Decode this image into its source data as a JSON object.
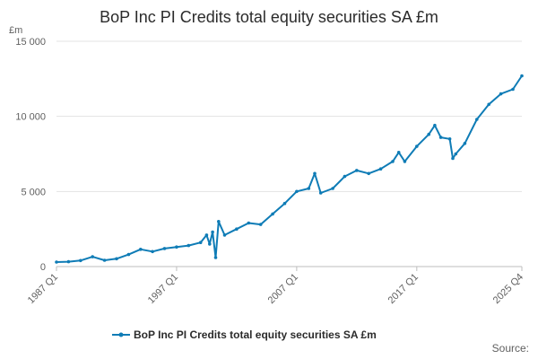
{
  "chart_data": {
    "type": "line",
    "title": "BoP Inc PI Credits total equity securities SA £m",
    "unit_label": "£m",
    "xlabel": "",
    "ylabel": "",
    "ylim": [
      0,
      15000
    ],
    "yticks": [
      0,
      5000,
      10000,
      15000
    ],
    "ytick_labels": [
      "0",
      "5 000",
      "10 000",
      "15 000"
    ],
    "x_range": [
      "1987 Q1",
      "2025 Q4"
    ],
    "xticks": [
      "1987 Q1",
      "1997 Q1",
      "2007 Q1",
      "2017 Q1",
      "2025 Q4"
    ],
    "grid": true,
    "legend_position": "bottom",
    "source_label": "Source:",
    "series": [
      {
        "name": "BoP Inc PI Credits total equity securities SA £m",
        "color": "#0f7cb6",
        "x": [
          "1987 Q1",
          "1988 Q1",
          "1989 Q1",
          "1990 Q1",
          "1991 Q1",
          "1992 Q1",
          "1993 Q1",
          "1994 Q1",
          "1995 Q1",
          "1996 Q1",
          "1997 Q1",
          "1998 Q1",
          "1999 Q1",
          "1999 Q3",
          "1999 Q4",
          "2000 Q1",
          "2000 Q2",
          "2000 Q3",
          "2001 Q1",
          "2002 Q1",
          "2003 Q1",
          "2004 Q1",
          "2005 Q1",
          "2006 Q1",
          "2007 Q1",
          "2008 Q1",
          "2008 Q3",
          "2009 Q1",
          "2010 Q1",
          "2011 Q1",
          "2012 Q1",
          "2013 Q1",
          "2014 Q1",
          "2015 Q1",
          "2015 Q3",
          "2016 Q1",
          "2017 Q1",
          "2018 Q1",
          "2018 Q3",
          "2019 Q1",
          "2019 Q4",
          "2020 Q1",
          "2020 Q2",
          "2021 Q1",
          "2022 Q1",
          "2023 Q1",
          "2024 Q1",
          "2025 Q1",
          "2025 Q4"
        ],
        "values": [
          300,
          320,
          400,
          650,
          420,
          520,
          800,
          1150,
          1000,
          1200,
          1300,
          1400,
          1600,
          2100,
          1500,
          2300,
          600,
          3000,
          2100,
          2500,
          2900,
          2800,
          3500,
          4200,
          5000,
          5200,
          6200,
          4900,
          5200,
          6000,
          6400,
          6200,
          6500,
          7000,
          7600,
          7000,
          8000,
          8800,
          9400,
          8600,
          8500,
          7200,
          7500,
          8200,
          9800,
          10800,
          11500,
          11800,
          12700
        ]
      }
    ]
  }
}
